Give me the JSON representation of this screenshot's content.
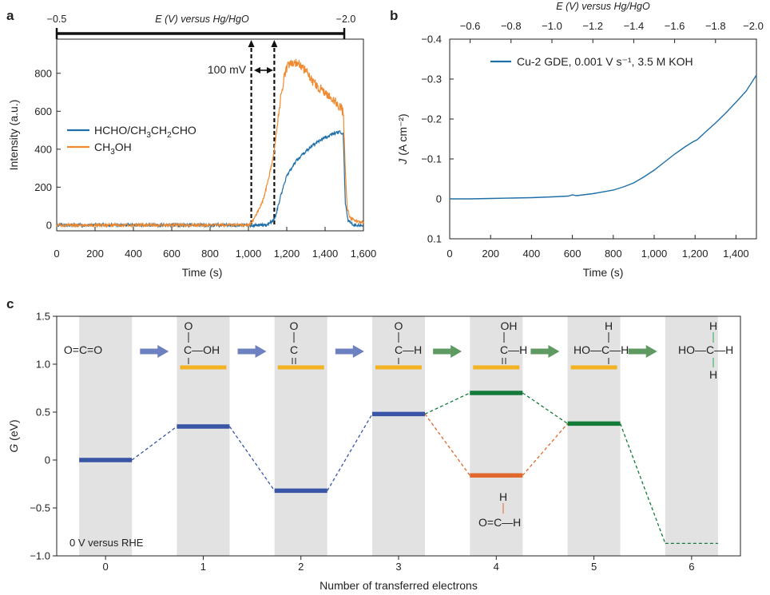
{
  "colors": {
    "blue": "#1f6fa6",
    "orange": "#f08a30",
    "bar_blue": "#3a55a5",
    "bar_green": "#137a3a",
    "bar_orange": "#e0682d",
    "bar_yellow": "#f2b221",
    "arrow_blue": "#6d80c0",
    "arrow_green": "#5e9a62",
    "mol_green": "#2eaa55",
    "mol_orange": "#e0682d",
    "band_grey": "#e2e2e3"
  },
  "chart_data": [
    {
      "id": "a",
      "type": "line",
      "panel_label": "a",
      "xlabel": "Time (s)",
      "ylabel": "Intensity (a.u.)",
      "xlim": [
        0,
        1600
      ],
      "ylim": [
        -30,
        980
      ],
      "xticks": [
        0,
        200,
        400,
        600,
        800,
        1000,
        1200,
        1400,
        1600
      ],
      "xtick_labels": [
        "0",
        "200",
        "400",
        "600",
        "800",
        "1,000",
        "1,200",
        "1,400",
        "1,600"
      ],
      "yticks": [
        0,
        200,
        400,
        600,
        800
      ],
      "ytick_labels": [
        "0",
        "200",
        "400",
        "600",
        "800"
      ],
      "top_axis": {
        "label": "E (V) versus Hg/HgO",
        "left_label": "−0.5",
        "right_label": "−2.0",
        "t_start": 0,
        "t_end": 1500
      },
      "markers": [
        1015,
        1135
      ],
      "marker_label": "100 mV",
      "legend": [
        "HCHO/CH3CH2CHO",
        "CH3OH"
      ],
      "series": [
        {
          "name": "HCHO/CH3CH2CHO",
          "color": "blue",
          "x": [
            0,
            1000,
            1100,
            1140,
            1170,
            1200,
            1250,
            1300,
            1350,
            1400,
            1440,
            1480,
            1495,
            1505,
            1520,
            1550,
            1600
          ],
          "y": [
            0,
            0,
            0,
            40,
            160,
            260,
            340,
            390,
            430,
            460,
            480,
            490,
            480,
            120,
            25,
            0,
            -5
          ]
        },
        {
          "name": "CH3OH",
          "color": "orange",
          "x": [
            0,
            1000,
            1030,
            1080,
            1110,
            1130,
            1150,
            1170,
            1190,
            1210,
            1230,
            1260,
            1300,
            1350,
            1400,
            1450,
            1480,
            1495,
            1505,
            1515,
            1530,
            1560,
            1600
          ],
          "y": [
            0,
            0,
            30,
            140,
            270,
            360,
            520,
            690,
            790,
            850,
            860,
            850,
            810,
            740,
            700,
            660,
            620,
            590,
            300,
            90,
            40,
            20,
            15
          ]
        }
      ]
    },
    {
      "id": "b",
      "type": "line",
      "panel_label": "b",
      "xlabel": "Time (s)",
      "ylabel_main": "J",
      "ylabel_rest": " (A cm⁻²)",
      "xlim": [
        0,
        1500
      ],
      "ylim": [
        0.1,
        -0.4
      ],
      "xticks": [
        0,
        200,
        400,
        600,
        800,
        1000,
        1200,
        1400
      ],
      "xtick_labels": [
        "0",
        "200",
        "400",
        "600",
        "800",
        "1,000",
        "1,200",
        "1,400"
      ],
      "yticks": [
        0.1,
        0,
        -0.1,
        -0.2,
        -0.3,
        -0.4
      ],
      "ytick_labels": [
        "0.1",
        "0",
        "−0.1",
        "−0.2",
        "−0.3",
        "−0.4"
      ],
      "top_axis": {
        "label": "E (V) versus Hg/HgO",
        "ticks": [
          -0.6,
          -0.8,
          -1.0,
          -1.2,
          -1.4,
          -1.6,
          -1.8,
          -2.0
        ],
        "tick_labels": [
          "−0.6",
          "−0.8",
          "−1.0",
          "−1.2",
          "−1.4",
          "−1.6",
          "−1.8",
          "−2.0"
        ]
      },
      "legend": [
        "Cu-2 GDE, 0.001 V s⁻¹, 3.5 M KOH"
      ],
      "series": [
        {
          "name": "Cu-2 GDE, 0.001 V s⁻¹, 3.5 M KOH",
          "color": "blue",
          "x": [
            0,
            100,
            200,
            300,
            400,
            500,
            580,
            600,
            620,
            700,
            800,
            850,
            900,
            950,
            1000,
            1050,
            1100,
            1150,
            1190,
            1210,
            1250,
            1300,
            1350,
            1400,
            1450,
            1500
          ],
          "y": [
            0,
            0,
            -0.001,
            -0.002,
            -0.003,
            -0.005,
            -0.007,
            -0.01,
            -0.008,
            -0.013,
            -0.022,
            -0.03,
            -0.04,
            -0.055,
            -0.072,
            -0.092,
            -0.112,
            -0.13,
            -0.143,
            -0.148,
            -0.167,
            -0.19,
            -0.215,
            -0.242,
            -0.27,
            -0.31
          ]
        }
      ]
    },
    {
      "id": "c",
      "type": "energy_diagram",
      "panel_label": "c",
      "xlabel": "Number of transferred electrons",
      "ylabel": "G (eV)",
      "xlim": [
        -0.5,
        6.5
      ],
      "ylim": [
        -1.0,
        1.5
      ],
      "xticks": [
        0,
        1,
        2,
        3,
        4,
        5,
        6
      ],
      "xtick_labels": [
        "0",
        "1",
        "2",
        "3",
        "4",
        "5",
        "6"
      ],
      "yticks": [
        1.5,
        1.0,
        0.5,
        0,
        -0.5,
        -1.0
      ],
      "ytick_labels": [
        "1.5",
        "1.0",
        "0.5",
        "0",
        "−0.5",
        "−1.0"
      ],
      "annotation": "0 V versus RHE",
      "grey_bands": [
        0,
        1,
        2,
        3,
        4,
        5,
        6
      ],
      "levels": [
        {
          "x": 0,
          "G": 0.0,
          "color": "bar_blue"
        },
        {
          "x": 1,
          "G": 0.35,
          "color": "bar_blue"
        },
        {
          "x": 2,
          "G": -0.32,
          "color": "bar_blue"
        },
        {
          "x": 3,
          "G": 0.48,
          "color": "bar_blue"
        },
        {
          "x": 4,
          "G": 0.7,
          "color": "bar_green"
        },
        {
          "x": 4,
          "G": -0.16,
          "color": "bar_orange"
        },
        {
          "x": 5,
          "G": 0.38,
          "color": "bar_green"
        },
        {
          "x": 6,
          "G": -0.87,
          "color": "bar_green",
          "dashed": true
        }
      ],
      "connectors": [
        {
          "from": [
            0,
            0.0
          ],
          "to": [
            1,
            0.35
          ],
          "color": "bar_blue"
        },
        {
          "from": [
            1,
            0.35
          ],
          "to": [
            2,
            -0.32
          ],
          "color": "bar_blue"
        },
        {
          "from": [
            2,
            -0.32
          ],
          "to": [
            3,
            0.48
          ],
          "color": "bar_blue"
        },
        {
          "from": [
            3,
            0.48
          ],
          "to": [
            4,
            0.7
          ],
          "color": "bar_green"
        },
        {
          "from": [
            4,
            0.7
          ],
          "to": [
            5,
            0.38
          ],
          "color": "bar_green"
        },
        {
          "from": [
            3,
            0.48
          ],
          "to": [
            4,
            -0.16
          ],
          "color": "bar_orange"
        },
        {
          "from": [
            4,
            -0.16
          ],
          "to": [
            5,
            0.38
          ],
          "color": "bar_orange"
        },
        {
          "from": [
            5,
            0.38
          ],
          "to": [
            6,
            -0.87
          ],
          "color": "bar_green"
        }
      ],
      "adsorbate_bars": [
        1,
        2,
        3,
        4,
        5
      ],
      "arrows": [
        {
          "x": 0.5,
          "color": "arrow_blue"
        },
        {
          "x": 1.5,
          "color": "arrow_blue"
        },
        {
          "x": 2.5,
          "color": "arrow_blue"
        },
        {
          "x": 3.5,
          "color": "arrow_green"
        },
        {
          "x": 4.5,
          "color": "arrow_green"
        },
        {
          "x": 5.5,
          "color": "arrow_green"
        }
      ],
      "molecules": {
        "m0": {
          "text": "O=C=O"
        },
        "m1": {
          "top": "O",
          "main": "C—OH"
        },
        "m2": {
          "top": "O",
          "main": "C"
        },
        "m3": {
          "top": "O",
          "main": "C—H"
        },
        "m4": {
          "top": "OH",
          "main": "C—H"
        },
        "m5": {
          "top": "H",
          "main": "HO—C—H"
        },
        "m6": {
          "top": "H",
          "main": "HO—C—H",
          "bottom": "H"
        },
        "m4b": {
          "top": "H",
          "main": "O=C—H"
        }
      }
    }
  ]
}
